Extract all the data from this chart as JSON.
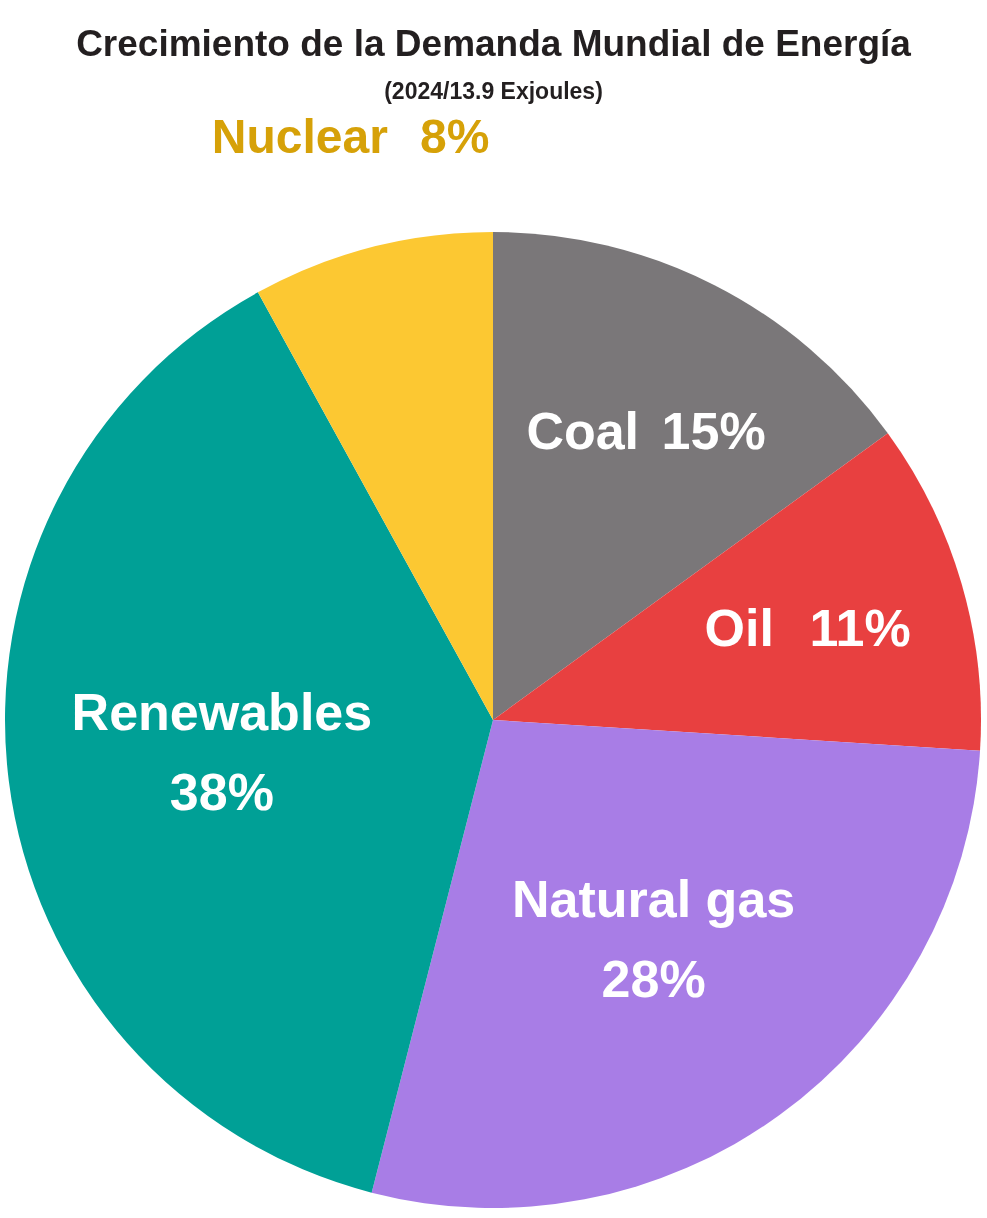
{
  "chart_data": {
    "type": "pie",
    "title": "Crecimiento de la Demanda Mundial de Energía",
    "subtitle": "(2024/13.9 Exjoules)",
    "categories": [
      "Coal",
      "Oil",
      "Natural gas",
      "Renewables",
      "Nuclear"
    ],
    "values": [
      15,
      11,
      28,
      38,
      8
    ],
    "colors": [
      "#7a7779",
      "#e84040",
      "#a87de6",
      "#00a096",
      "#fcc832"
    ],
    "value_labels": [
      "15%",
      "11%",
      "28%",
      "38%",
      "8%"
    ]
  }
}
